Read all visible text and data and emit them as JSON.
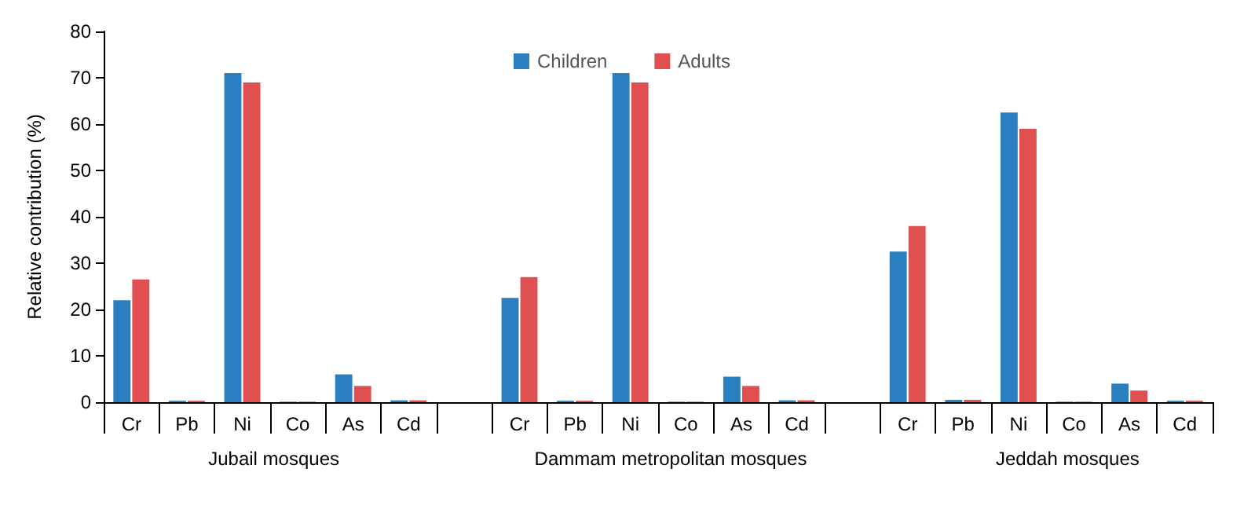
{
  "chart_data": {
    "type": "bar",
    "ylabel": "Relative contribution (%)",
    "categories": [
      "Cr",
      "Pb",
      "Ni",
      "Co",
      "As",
      "Cd",
      null,
      "Cr",
      "Pb",
      "Ni",
      "Co",
      "As",
      "Cd",
      null,
      "Cr",
      "Pb",
      "Ni",
      "Co",
      "As",
      "Cd"
    ],
    "series": [
      {
        "name": "Children",
        "color": "#2a7fc1",
        "values": [
          22,
          0.3,
          71,
          0.1,
          6,
          0.4,
          null,
          22.5,
          0.3,
          71,
          0.1,
          5.5,
          0.4,
          null,
          32.5,
          0.5,
          62.5,
          0.1,
          4,
          0.3
        ]
      },
      {
        "name": "Adults",
        "color": "#e05050",
        "values": [
          26.5,
          0.3,
          69,
          0.1,
          3.5,
          0.4,
          null,
          27,
          0.3,
          69,
          0.1,
          3.5,
          0.4,
          null,
          38,
          0.5,
          59,
          0.1,
          2.5,
          0.3
        ]
      }
    ],
    "annotations": [
      "Jubail mosques",
      "Dammam metropolitan mosques",
      "Jeddah mosques"
    ],
    "ylim": [
      0,
      80
    ],
    "yticks": [
      0,
      10,
      20,
      30,
      40,
      50,
      60,
      70,
      80
    ],
    "grid": false,
    "legend": "top"
  }
}
